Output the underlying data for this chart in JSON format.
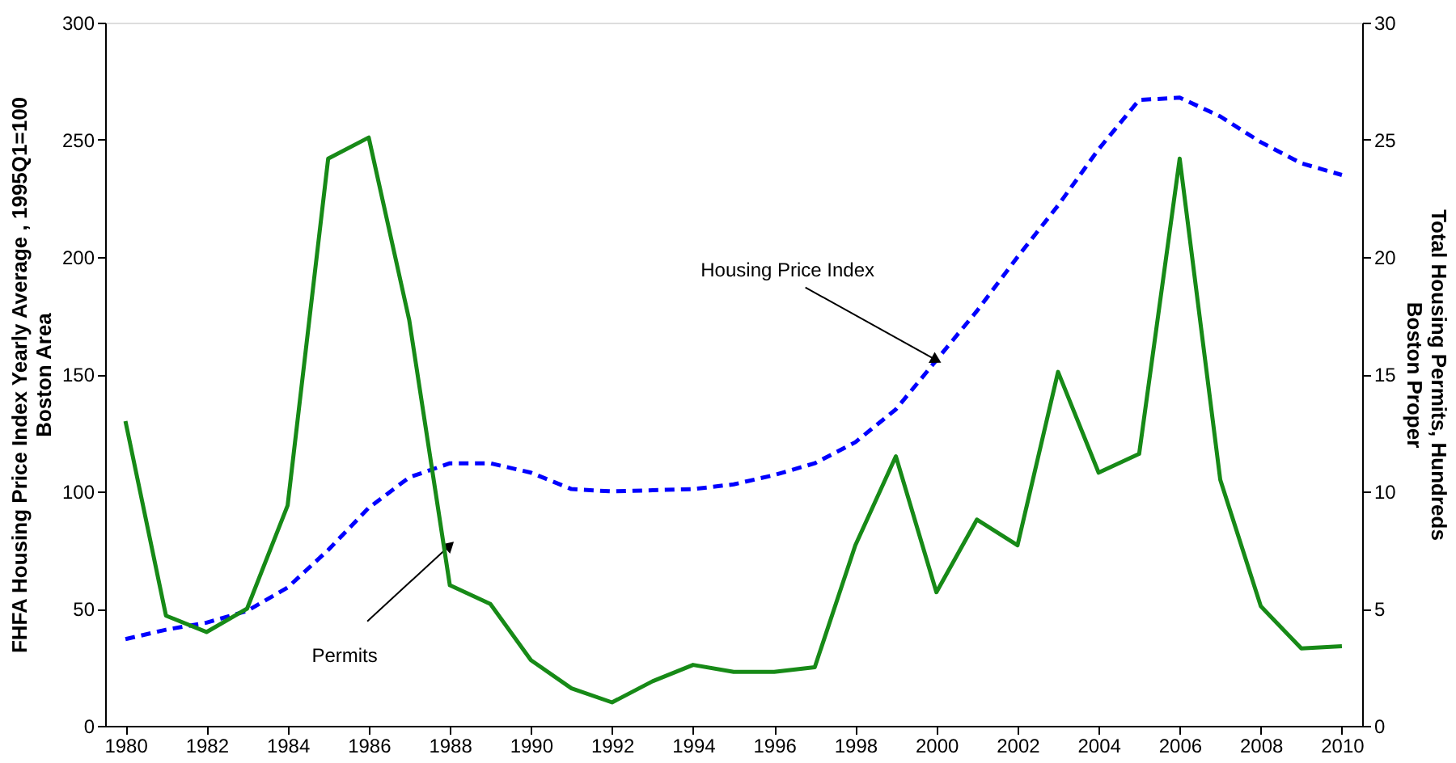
{
  "chart_data": {
    "type": "line",
    "ylabel": "FHFA Housing Price Index Yearly Average , 1995Q1=100\nBoston Area",
    "y2label": "Total Housing Permits, Hundreds\nBoston Proper",
    "x": [
      1980,
      1981,
      1982,
      1983,
      1984,
      1985,
      1986,
      1987,
      1988,
      1989,
      1990,
      1991,
      1992,
      1993,
      1994,
      1995,
      1996,
      1997,
      1998,
      1999,
      2000,
      2001,
      2002,
      2003,
      2004,
      2005,
      2006,
      2007,
      2008,
      2009,
      2010
    ],
    "xlim": [
      1979.5,
      2010.5
    ],
    "xticks": [
      1980,
      1982,
      1984,
      1986,
      1988,
      1990,
      1992,
      1994,
      1996,
      1998,
      2000,
      2002,
      2004,
      2006,
      2008,
      2010
    ],
    "ylim": [
      0,
      300
    ],
    "yticks": [
      0,
      50,
      100,
      150,
      200,
      250,
      300
    ],
    "y2lim": [
      0,
      30
    ],
    "y2ticks": [
      0,
      5,
      10,
      15,
      20,
      25,
      30
    ],
    "grid": false,
    "marker": "none",
    "series": [
      {
        "color": "#0000ff",
        "line_style": "dashed",
        "values": [
          37,
          41,
          44,
          49,
          59,
          75,
          93,
          106,
          112,
          112,
          108,
          101,
          100,
          100.5,
          101,
          103,
          107,
          112,
          121,
          135,
          156,
          177,
          200,
          222,
          246,
          267,
          268,
          260,
          249,
          240,
          235
        ]
      },
      {
        "color": "#178a17",
        "line_style": "solid",
        "axis": "y2",
        "values": [
          13.0,
          4.7,
          4.0,
          5.0,
          9.4,
          24.2,
          25.1,
          17.3,
          6.0,
          5.2,
          2.8,
          1.6,
          1.0,
          1.9,
          2.6,
          2.3,
          2.3,
          2.5,
          7.7,
          11.5,
          5.7,
          8.8,
          7.7,
          15.1,
          10.8,
          11.6,
          24.2,
          10.5,
          5.1,
          3.3,
          3.4
        ]
      }
    ],
    "annotations": [
      {
        "text": "Housing Price Index",
        "x": 2000,
        "y": 156
      },
      {
        "text": "Permits",
        "x": 1988,
        "y": 77
      }
    ]
  }
}
